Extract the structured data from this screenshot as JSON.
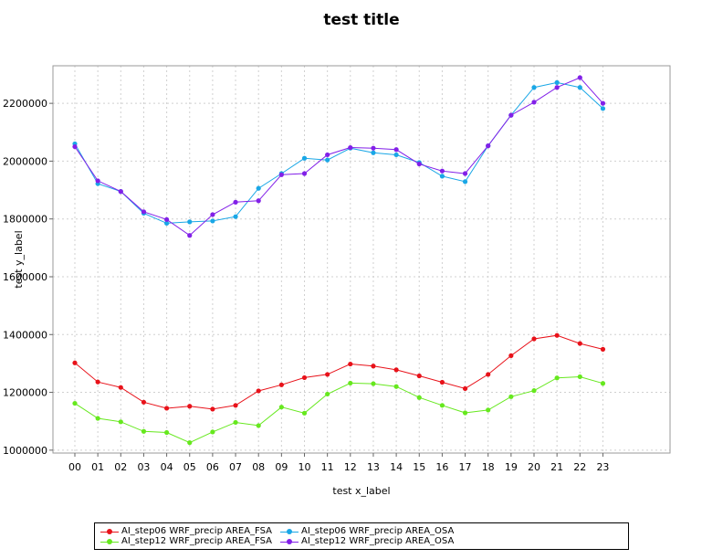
{
  "chart_data": {
    "type": "line",
    "title": "test title",
    "xlabel": "test x_label",
    "ylabel": "test y_label",
    "ylim": [
      990000,
      2330000
    ],
    "yticks": [
      1000000,
      1200000,
      1400000,
      1600000,
      1800000,
      2000000,
      2200000
    ],
    "ytick_labels": [
      "1000000",
      "1200000",
      "1400000",
      "1600000",
      "1800000",
      "2000000",
      "2200000"
    ],
    "categories": [
      "00",
      "01",
      "02",
      "03",
      "04",
      "05",
      "06",
      "07",
      "08",
      "09",
      "10",
      "11",
      "12",
      "13",
      "14",
      "15",
      "16",
      "17",
      "18",
      "19",
      "20",
      "21",
      "22",
      "23"
    ],
    "grid": true,
    "legend_position": "bottom",
    "series": [
      {
        "name": "AI_step06 WRF_precip AREA_FSA",
        "color": "#e8121a",
        "values": [
          1302000,
          1236000,
          1217000,
          1166000,
          1145000,
          1152000,
          1142000,
          1155000,
          1205000,
          1226000,
          1251000,
          1262000,
          1298000,
          1291000,
          1278000,
          1257000,
          1235000,
          1213000,
          1262000,
          1327000,
          1385000,
          1397000,
          1369000,
          1349000
        ]
      },
      {
        "name": "AI_step12 WRF_precip AREA_FSA",
        "color": "#66e81e",
        "values": [
          1162000,
          1110000,
          1098000,
          1065000,
          1061000,
          1026000,
          1063000,
          1096000,
          1085000,
          1149000,
          1128000,
          1194000,
          1232000,
          1230000,
          1220000,
          1182000,
          1155000,
          1129000,
          1139000,
          1185000,
          1206000,
          1250000,
          1254000,
          1231000
        ]
      },
      {
        "name": "AI_step06 WRF_precip AREA_OSA",
        "color": "#1aa7e6",
        "values": [
          2060000,
          1922000,
          1895000,
          1820000,
          1785000,
          1790000,
          1793000,
          1808000,
          1906000,
          1957000,
          2010000,
          2004000,
          2045000,
          2029000,
          2022000,
          1995000,
          1948000,
          1929000,
          2053000,
          2159000,
          2255000,
          2272000,
          2255000,
          2182000
        ]
      },
      {
        "name": "AI_step12 WRF_precip AREA_OSA",
        "color": "#8220e8",
        "values": [
          2050000,
          1932000,
          1895000,
          1825000,
          1798000,
          1743000,
          1815000,
          1858000,
          1863000,
          1953000,
          1957000,
          2022000,
          2047000,
          2045000,
          2040000,
          1990000,
          1966000,
          1957000,
          2053000,
          2159000,
          2204000,
          2255000,
          2289000,
          2200000
        ]
      }
    ]
  }
}
